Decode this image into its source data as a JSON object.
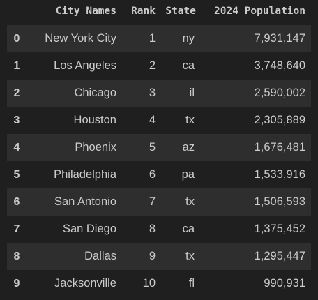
{
  "table": {
    "columns": [
      "City Names",
      "Rank",
      "State",
      "2024 Population"
    ],
    "rows": [
      {
        "index": "0",
        "city": "New York City",
        "rank": "1",
        "state": "ny",
        "population": "7,931,147"
      },
      {
        "index": "1",
        "city": "Los Angeles",
        "rank": "2",
        "state": "ca",
        "population": "3,748,640"
      },
      {
        "index": "2",
        "city": "Chicago",
        "rank": "3",
        "state": "il",
        "population": "2,590,002"
      },
      {
        "index": "3",
        "city": "Houston",
        "rank": "4",
        "state": "tx",
        "population": "2,305,889"
      },
      {
        "index": "4",
        "city": "Phoenix",
        "rank": "5",
        "state": "az",
        "population": "1,676,481"
      },
      {
        "index": "5",
        "city": "Philadelphia",
        "rank": "6",
        "state": "pa",
        "population": "1,533,916"
      },
      {
        "index": "6",
        "city": "San Antonio",
        "rank": "7",
        "state": "tx",
        "population": "1,506,593"
      },
      {
        "index": "7",
        "city": "San Diego",
        "rank": "8",
        "state": "ca",
        "population": "1,375,452"
      },
      {
        "index": "8",
        "city": "Dallas",
        "rank": "9",
        "state": "tx",
        "population": "1,295,447"
      },
      {
        "index": "9",
        "city": "Jacksonville",
        "rank": "10",
        "state": "fl",
        "population": "990,931"
      }
    ]
  },
  "colors": {
    "background": "#1f1f1f",
    "row_stripe": "#2e2e2e",
    "text": "#cccccc"
  }
}
